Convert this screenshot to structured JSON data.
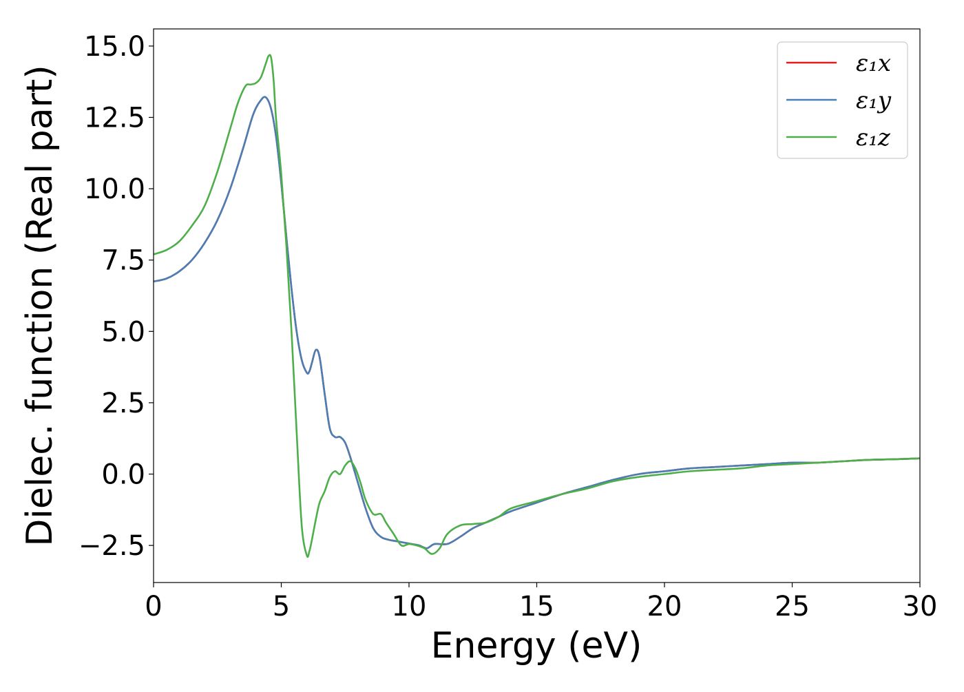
{
  "chart_data": {
    "type": "line",
    "title": "",
    "xlabel": "Energy (eV)",
    "ylabel": "Dielec. function (Real part)",
    "xlim": [
      0,
      30
    ],
    "ylim": [
      -3.8,
      15.6
    ],
    "x_ticks": [
      0,
      5,
      10,
      15,
      20,
      25,
      30
    ],
    "x_tick_labels": [
      "0",
      "5",
      "10",
      "15",
      "20",
      "25",
      "30"
    ],
    "y_ticks": [
      -2.5,
      0.0,
      2.5,
      5.0,
      7.5,
      10.0,
      12.5,
      15.0
    ],
    "y_tick_labels": [
      "−2.5",
      "0.0",
      "2.5",
      "5.0",
      "7.5",
      "10.0",
      "12.5",
      "15.0"
    ],
    "grid": false,
    "legend_position": "top-right",
    "series": [
      {
        "name": "ε₁x",
        "color": "#e41a1c",
        "x": [
          0,
          0.5,
          1,
          1.5,
          2,
          2.5,
          3,
          3.5,
          3.9,
          4.2,
          4.4,
          4.6,
          4.8,
          5.0,
          5.2,
          5.4,
          5.6,
          5.8,
          6.0,
          6.1,
          6.2,
          6.35,
          6.5,
          6.7,
          6.9,
          7.1,
          7.3,
          7.5,
          7.7,
          8.0,
          8.3,
          8.6,
          8.9,
          9.2,
          9.5,
          9.8,
          10.1,
          10.4,
          10.7,
          11.0,
          11.5,
          12.0,
          12.5,
          13.0,
          13.5,
          14.0,
          15.0,
          16.0,
          17.0,
          18.0,
          19.0,
          20.0,
          21.0,
          22.0,
          23.0,
          24.0,
          25.0,
          26.0,
          27.0,
          28.0,
          29.0,
          30.0
        ],
        "values": [
          6.75,
          6.85,
          7.1,
          7.5,
          8.1,
          8.9,
          10.0,
          11.4,
          12.6,
          13.1,
          13.2,
          12.8,
          11.8,
          10.2,
          8.3,
          6.5,
          5.0,
          4.0,
          3.55,
          3.6,
          3.9,
          4.35,
          4.1,
          2.8,
          1.6,
          1.3,
          1.3,
          1.1,
          0.6,
          -0.3,
          -1.2,
          -1.9,
          -2.2,
          -2.3,
          -2.35,
          -2.4,
          -2.45,
          -2.5,
          -2.6,
          -2.45,
          -2.45,
          -2.2,
          -1.9,
          -1.7,
          -1.5,
          -1.3,
          -1.0,
          -0.7,
          -0.45,
          -0.2,
          0.0,
          0.1,
          0.2,
          0.25,
          0.3,
          0.35,
          0.4,
          0.4,
          0.45,
          0.5,
          0.52,
          0.55
        ]
      },
      {
        "name": "ε₁y",
        "color": "#4a7fb5",
        "x": [
          0,
          0.5,
          1,
          1.5,
          2,
          2.5,
          3,
          3.5,
          3.9,
          4.2,
          4.4,
          4.6,
          4.8,
          5.0,
          5.2,
          5.4,
          5.6,
          5.8,
          6.0,
          6.1,
          6.2,
          6.35,
          6.5,
          6.7,
          6.9,
          7.1,
          7.3,
          7.5,
          7.7,
          8.0,
          8.3,
          8.6,
          8.9,
          9.2,
          9.5,
          9.8,
          10.1,
          10.4,
          10.7,
          11.0,
          11.5,
          12.0,
          12.5,
          13.0,
          13.5,
          14.0,
          15.0,
          16.0,
          17.0,
          18.0,
          19.0,
          20.0,
          21.0,
          22.0,
          23.0,
          24.0,
          25.0,
          26.0,
          27.0,
          28.0,
          29.0,
          30.0
        ],
        "values": [
          6.75,
          6.85,
          7.1,
          7.5,
          8.1,
          8.9,
          10.0,
          11.4,
          12.6,
          13.1,
          13.2,
          12.8,
          11.8,
          10.2,
          8.3,
          6.5,
          5.0,
          4.0,
          3.55,
          3.6,
          3.9,
          4.35,
          4.1,
          2.8,
          1.6,
          1.3,
          1.3,
          1.1,
          0.6,
          -0.3,
          -1.2,
          -1.9,
          -2.2,
          -2.3,
          -2.35,
          -2.4,
          -2.45,
          -2.5,
          -2.6,
          -2.45,
          -2.45,
          -2.2,
          -1.9,
          -1.7,
          -1.5,
          -1.3,
          -1.0,
          -0.7,
          -0.45,
          -0.2,
          0.0,
          0.1,
          0.2,
          0.25,
          0.3,
          0.35,
          0.4,
          0.4,
          0.45,
          0.5,
          0.52,
          0.55
        ]
      },
      {
        "name": "ε₁z",
        "color": "#4daf4a",
        "x": [
          0,
          0.5,
          1,
          1.5,
          2,
          2.5,
          3,
          3.3,
          3.6,
          3.8,
          4.0,
          4.2,
          4.4,
          4.5,
          4.6,
          4.7,
          4.8,
          5.0,
          5.2,
          5.4,
          5.6,
          5.8,
          6.0,
          6.1,
          6.2,
          6.35,
          6.5,
          6.7,
          6.9,
          7.1,
          7.3,
          7.5,
          7.7,
          7.9,
          8.1,
          8.3,
          8.6,
          8.9,
          9.1,
          9.4,
          9.7,
          10.0,
          10.3,
          10.6,
          10.9,
          11.2,
          11.5,
          12.0,
          12.5,
          13.0,
          13.5,
          14.0,
          15.0,
          16.0,
          17.0,
          18.0,
          19.0,
          20.0,
          21.0,
          22.0,
          23.0,
          24.0,
          25.0,
          26.0,
          27.0,
          28.0,
          29.0,
          30.0
        ],
        "values": [
          7.7,
          7.85,
          8.15,
          8.7,
          9.4,
          10.6,
          12.1,
          13.0,
          13.6,
          13.65,
          13.7,
          13.9,
          14.4,
          14.65,
          14.6,
          13.8,
          12.4,
          10.5,
          8.0,
          5.0,
          1.5,
          -1.8,
          -2.85,
          -2.7,
          -2.3,
          -1.6,
          -1.0,
          -0.6,
          -0.1,
          0.1,
          0.0,
          0.3,
          0.45,
          0.2,
          -0.3,
          -0.9,
          -1.4,
          -1.4,
          -1.7,
          -2.1,
          -2.5,
          -2.45,
          -2.5,
          -2.6,
          -2.8,
          -2.6,
          -2.1,
          -1.8,
          -1.75,
          -1.7,
          -1.5,
          -1.2,
          -0.95,
          -0.7,
          -0.5,
          -0.25,
          -0.1,
          0.0,
          0.1,
          0.15,
          0.2,
          0.3,
          0.35,
          0.4,
          0.45,
          0.5,
          0.52,
          0.55
        ]
      }
    ]
  }
}
